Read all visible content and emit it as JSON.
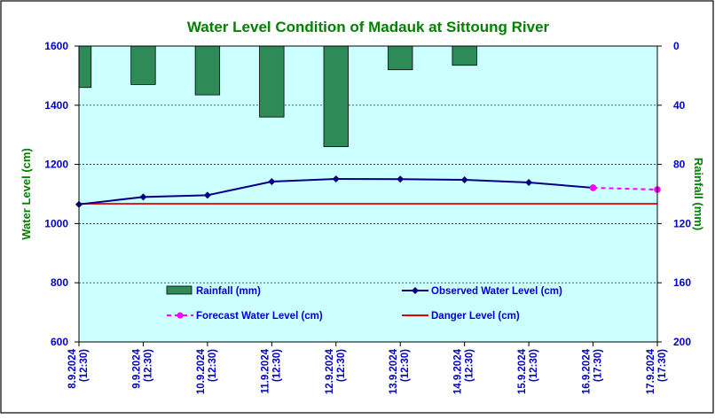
{
  "chart_data": {
    "type": "bar+line",
    "title": "Water Level Condition of Madauk at Sittoung River",
    "ylabel": "Water Level (cm)",
    "y2label": "Rainfall (mm)",
    "ylim": [
      600,
      1600
    ],
    "y2lim": [
      0,
      200
    ],
    "y2_reversed": true,
    "yticks": [
      "600",
      "800",
      "1000",
      "1200",
      "1400",
      "1600"
    ],
    "y2ticks": [
      "0",
      "40",
      "80",
      "120",
      "160",
      "200"
    ],
    "categories": [
      {
        "date": "8.9.2024",
        "time": "(12:30)"
      },
      {
        "date": "9.9.2024",
        "time": "(12:30)"
      },
      {
        "date": "10.9.2024",
        "time": "(12:30)"
      },
      {
        "date": "11.9.2024",
        "time": "(12:30)"
      },
      {
        "date": "12.9.2024",
        "time": "(12:30)"
      },
      {
        "date": "13.9.2024",
        "time": "(12:30)"
      },
      {
        "date": "14.9.2024",
        "time": "(12:30)"
      },
      {
        "date": "15.9.2024",
        "time": "(12:30)"
      },
      {
        "date": "16.9.2024",
        "time": "(17:30)"
      },
      {
        "date": "17.9.2024",
        "time": "(17:30)"
      }
    ],
    "series": [
      {
        "name": "Rainfall (mm)",
        "kind": "bar",
        "axis": "right",
        "color": "#2e8b57",
        "values": [
          28,
          26,
          33,
          48,
          68,
          16,
          13,
          null,
          null,
          null
        ]
      },
      {
        "name": "Observed Water Level (cm)",
        "kind": "line",
        "axis": "left",
        "color": "#000080",
        "values": [
          1065,
          1090,
          1096,
          1142,
          1151,
          1150,
          1148,
          1139,
          1121,
          null
        ]
      },
      {
        "name": "Forecast Water Level (cm)",
        "kind": "dashed-line",
        "axis": "left",
        "color": "#ff00ff",
        "values": [
          null,
          null,
          null,
          null,
          null,
          null,
          null,
          null,
          1121,
          1115
        ]
      },
      {
        "name": "Danger Level (cm)",
        "kind": "hline",
        "axis": "left",
        "color": "#e00000",
        "value": 1067
      }
    ],
    "legend_position": "bottom-inside",
    "grid": "horizontal-dashed",
    "colors": {
      "plot_background": "#ccffff",
      "title": "#008000",
      "axis_text": "#0000cc",
      "right_axis_text": "#008000"
    }
  }
}
